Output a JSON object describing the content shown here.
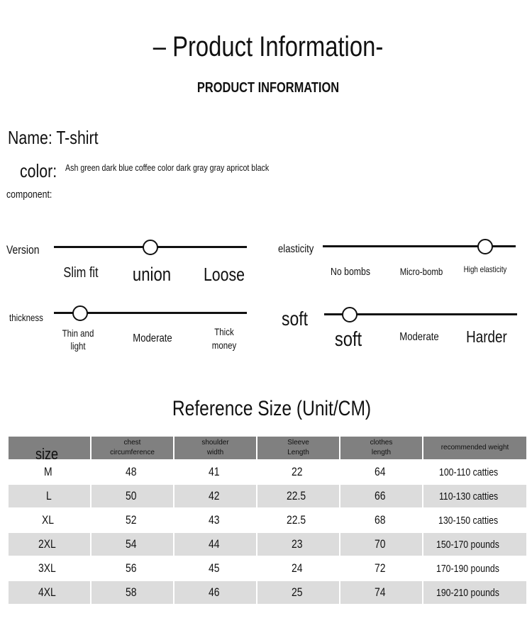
{
  "header": {
    "title": "–  Product Information-",
    "subtitle": "PRODUCT INFORMATION"
  },
  "info": {
    "name": "Name: T-shirt",
    "color_label": "color:",
    "color_value": "Ash green dark blue coffee color dark gray gray apricot black",
    "component_label": "component:"
  },
  "attributes": [
    {
      "label": "Version",
      "options": [
        "Slim fit",
        "union",
        "Loose"
      ],
      "selected": "union",
      "level": 0.5
    },
    {
      "label": "elasticity",
      "options": [
        "No bombs",
        "Micro-bomb",
        "High elasticity"
      ],
      "selected": "High elasticity",
      "level": 0.84
    },
    {
      "label": "thickness",
      "options": [
        "Thin and light",
        "Moderate",
        "Thick money"
      ],
      "selected": "Thin and light",
      "level": 0.14
    },
    {
      "label": "soft",
      "options": [
        "soft",
        "Moderate",
        "Harder"
      ],
      "selected": "soft",
      "level": 0.13
    }
  ],
  "size_table": {
    "title": "Reference Size (Unit/CM)",
    "headers": [
      "size",
      "chest circumference",
      "shoulder width",
      "Sleeve Length",
      "clothes length",
      "recommended weight"
    ],
    "rows": [
      [
        "M",
        "48",
        "41",
        "22",
        "64",
        "100-110 catties"
      ],
      [
        "L",
        "50",
        "42",
        "22.5",
        "66",
        "110-130 catties"
      ],
      [
        "XL",
        "52",
        "43",
        "22.5",
        "68",
        "130-150 catties"
      ],
      [
        "2XL",
        "54",
        "44",
        "23",
        "70",
        "150-170 pounds"
      ],
      [
        "3XL",
        "56",
        "45",
        "24",
        "72",
        "170-190 pounds"
      ],
      [
        "4XL",
        "58",
        "46",
        "25",
        "74",
        "190-210 pounds"
      ]
    ]
  }
}
